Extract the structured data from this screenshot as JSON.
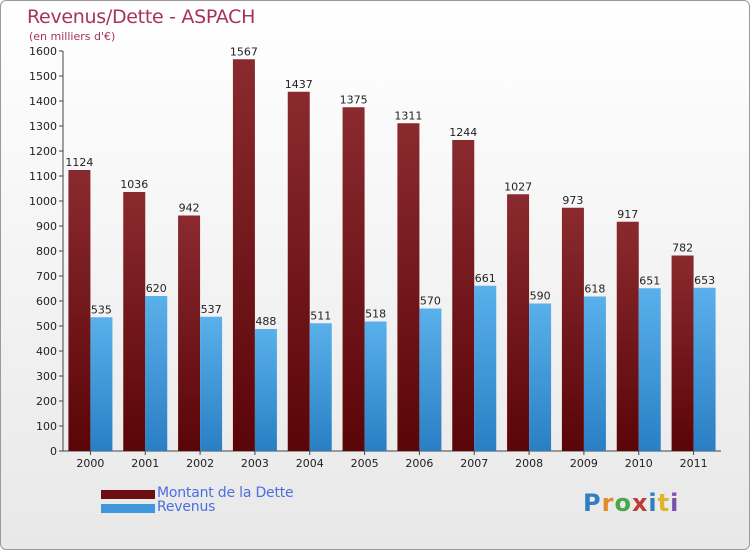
{
  "header": {
    "title": "Revenus/Dette - ASPACH",
    "subtitle": "(en milliers d'€)"
  },
  "legend": {
    "items": [
      {
        "label": "Montant de la Dette",
        "color": "#6b0f12"
      },
      {
        "label": "Revenus",
        "color": "#3f98dc"
      }
    ]
  },
  "logo": {
    "letters": [
      "P",
      "r",
      "o",
      "x",
      "i",
      "t",
      "i"
    ],
    "colors": [
      "#2f7fc1",
      "#e08a2b",
      "#4aa84a",
      "#c23a3a",
      "#2f7fc1",
      "#e0b52b",
      "#7a4fb0"
    ]
  },
  "chart_data": {
    "type": "bar",
    "title": "Revenus/Dette - ASPACH",
    "ylabel": "(en milliers d'€)",
    "xlabel": "",
    "ylim": [
      0,
      1600
    ],
    "yticks": [
      0,
      100,
      200,
      300,
      400,
      500,
      600,
      700,
      800,
      900,
      1000,
      1100,
      1200,
      1300,
      1400,
      1500,
      1600
    ],
    "categories": [
      "2000",
      "2001",
      "2002",
      "2003",
      "2004",
      "2005",
      "2006",
      "2007",
      "2008",
      "2009",
      "2010",
      "2011"
    ],
    "series": [
      {
        "name": "Montant de la Dette",
        "color": "#7d1d22",
        "values": [
          1124,
          1036,
          942,
          1567,
          1437,
          1375,
          1311,
          1244,
          1027,
          973,
          917,
          782
        ]
      },
      {
        "name": "Revenus",
        "color": "#3f98dc",
        "values": [
          535,
          620,
          537,
          488,
          511,
          518,
          570,
          661,
          590,
          618,
          651,
          653
        ]
      }
    ],
    "legend_position": "bottom-left",
    "grid": false
  }
}
